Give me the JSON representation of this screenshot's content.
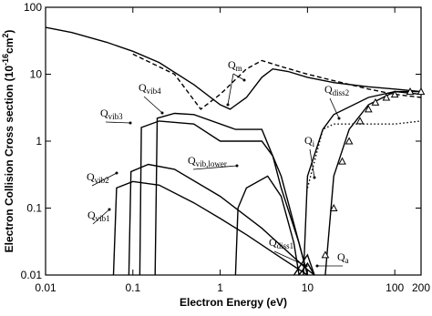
{
  "chart_data": {
    "type": "line",
    "x_label": "Electron Energy (eV)",
    "y_label": {
      "text": "Electron Collision Cross section (10",
      "sup1": "-16",
      "unit": "cm",
      "sup2": "2",
      "close": ")"
    },
    "xlim": [
      0.01,
      200
    ],
    "ylim": [
      0.01,
      100
    ],
    "xticks": [
      0.01,
      0.1,
      1,
      10,
      100,
      200
    ],
    "yticks": [
      0.01,
      0.1,
      1,
      10,
      100
    ],
    "log_x": true,
    "log_y": true,
    "series": [
      {
        "color": "#000000",
        "dash": "solid",
        "x": [
          0.01,
          0.02,
          0.05,
          0.1,
          0.2,
          0.5,
          1,
          1.3,
          2,
          3,
          4,
          6,
          10,
          20,
          50,
          100,
          200
        ],
        "values": [
          50,
          42,
          30,
          22,
          15,
          7,
          3.5,
          3,
          4.5,
          9,
          12,
          11,
          9,
          7.5,
          6.5,
          6,
          5.5
        ]
      },
      {
        "color": "#000000",
        "dash": "dashed",
        "x": [
          0.1,
          0.3,
          0.6,
          1,
          2,
          3,
          5,
          10,
          20,
          50,
          100,
          200
        ],
        "values": [
          20,
          10,
          3,
          5,
          12,
          16,
          13,
          10,
          8,
          6,
          5,
          4.5
        ]
      },
      {
        "color": "#000000",
        "dash": "solid",
        "x": [
          0.06,
          0.065,
          0.1,
          0.2,
          0.5,
          1,
          2,
          5,
          10
        ],
        "values": [
          0.01,
          0.2,
          0.25,
          0.22,
          0.12,
          0.07,
          0.04,
          0.018,
          0.01
        ]
      },
      {
        "color": "#000000",
        "dash": "solid",
        "x": [
          0.09,
          0.095,
          0.15,
          0.3,
          1,
          3,
          10,
          12
        ],
        "values": [
          0.01,
          0.35,
          0.45,
          0.38,
          0.15,
          0.05,
          0.012,
          0.01
        ]
      },
      {
        "color": "#000000",
        "dash": "solid",
        "x": [
          0.12,
          0.125,
          0.2,
          0.5,
          1,
          3,
          4,
          5,
          8,
          10
        ],
        "values": [
          0.01,
          1.6,
          2,
          1.8,
          1,
          1,
          0.6,
          0.2,
          0.03,
          0.01
        ]
      },
      {
        "color": "#000000",
        "dash": "solid",
        "x": [
          0.18,
          0.19,
          0.3,
          0.5,
          1.5,
          3,
          4,
          5,
          8,
          10
        ],
        "values": [
          0.01,
          2.2,
          2.6,
          2.5,
          1.5,
          1.5,
          0.6,
          0.3,
          0.03,
          0.01
        ]
      },
      {
        "color": "#000000",
        "dash": "solid",
        "x": [
          1.5,
          1.6,
          2,
          3.5,
          5,
          7,
          8
        ],
        "values": [
          0.01,
          0.1,
          0.2,
          0.3,
          0.15,
          0.03,
          0.01
        ]
      },
      {
        "color": "#000000",
        "dash": "solid",
        "x": [
          7,
          10,
          12
        ],
        "values": [
          0.01,
          0.02,
          0.01
        ]
      },
      {
        "color": "#000000",
        "dash": "solid",
        "x": [
          16,
          20,
          30,
          50,
          100,
          200
        ],
        "values": [
          0.01,
          0.3,
          1.5,
          3.5,
          5.5,
          5.5
        ]
      },
      {
        "color": "#000000",
        "dash": "solid",
        "x": [
          9,
          10,
          15,
          20,
          50,
          100,
          200
        ],
        "values": [
          0.01,
          0.3,
          1.5,
          2.5,
          4.5,
          5.5,
          5
        ]
      },
      {
        "color": "#000000",
        "dash": "solid",
        "x": [
          8,
          10,
          12
        ],
        "values": [
          0.01,
          0.015,
          0.01
        ]
      },
      {
        "color": "#000000",
        "dash": "dotted",
        "x": [
          10,
          15,
          20,
          100,
          200
        ],
        "values": [
          0.2,
          1.5,
          1.8,
          1.8,
          2
        ]
      },
      {
        "color": "#000000",
        "dash": "none",
        "marker": "triangle",
        "x": [
          16,
          20,
          25,
          30,
          40,
          50,
          60,
          80,
          100,
          150,
          200
        ],
        "values": [
          0.02,
          0.1,
          0.5,
          1,
          2,
          3,
          3.8,
          4.5,
          5,
          5.5,
          5.5
        ]
      }
    ],
    "annotations": [
      {
        "text": "Q",
        "sub": "m"
      },
      {
        "text": "Q",
        "sub": "vib4"
      },
      {
        "text": "Q",
        "sub": "vib3"
      },
      {
        "text": "Q",
        "sub": "vib2"
      },
      {
        "text": "Q",
        "sub": "vib1"
      },
      {
        "text": "Q",
        "sub": "vib,lower"
      },
      {
        "text": "Q",
        "sub": "i"
      },
      {
        "text": "Q",
        "sub": "diss2"
      },
      {
        "text": "Q",
        "sub": "diss1"
      },
      {
        "text": "Q",
        "sub": "a"
      }
    ]
  }
}
